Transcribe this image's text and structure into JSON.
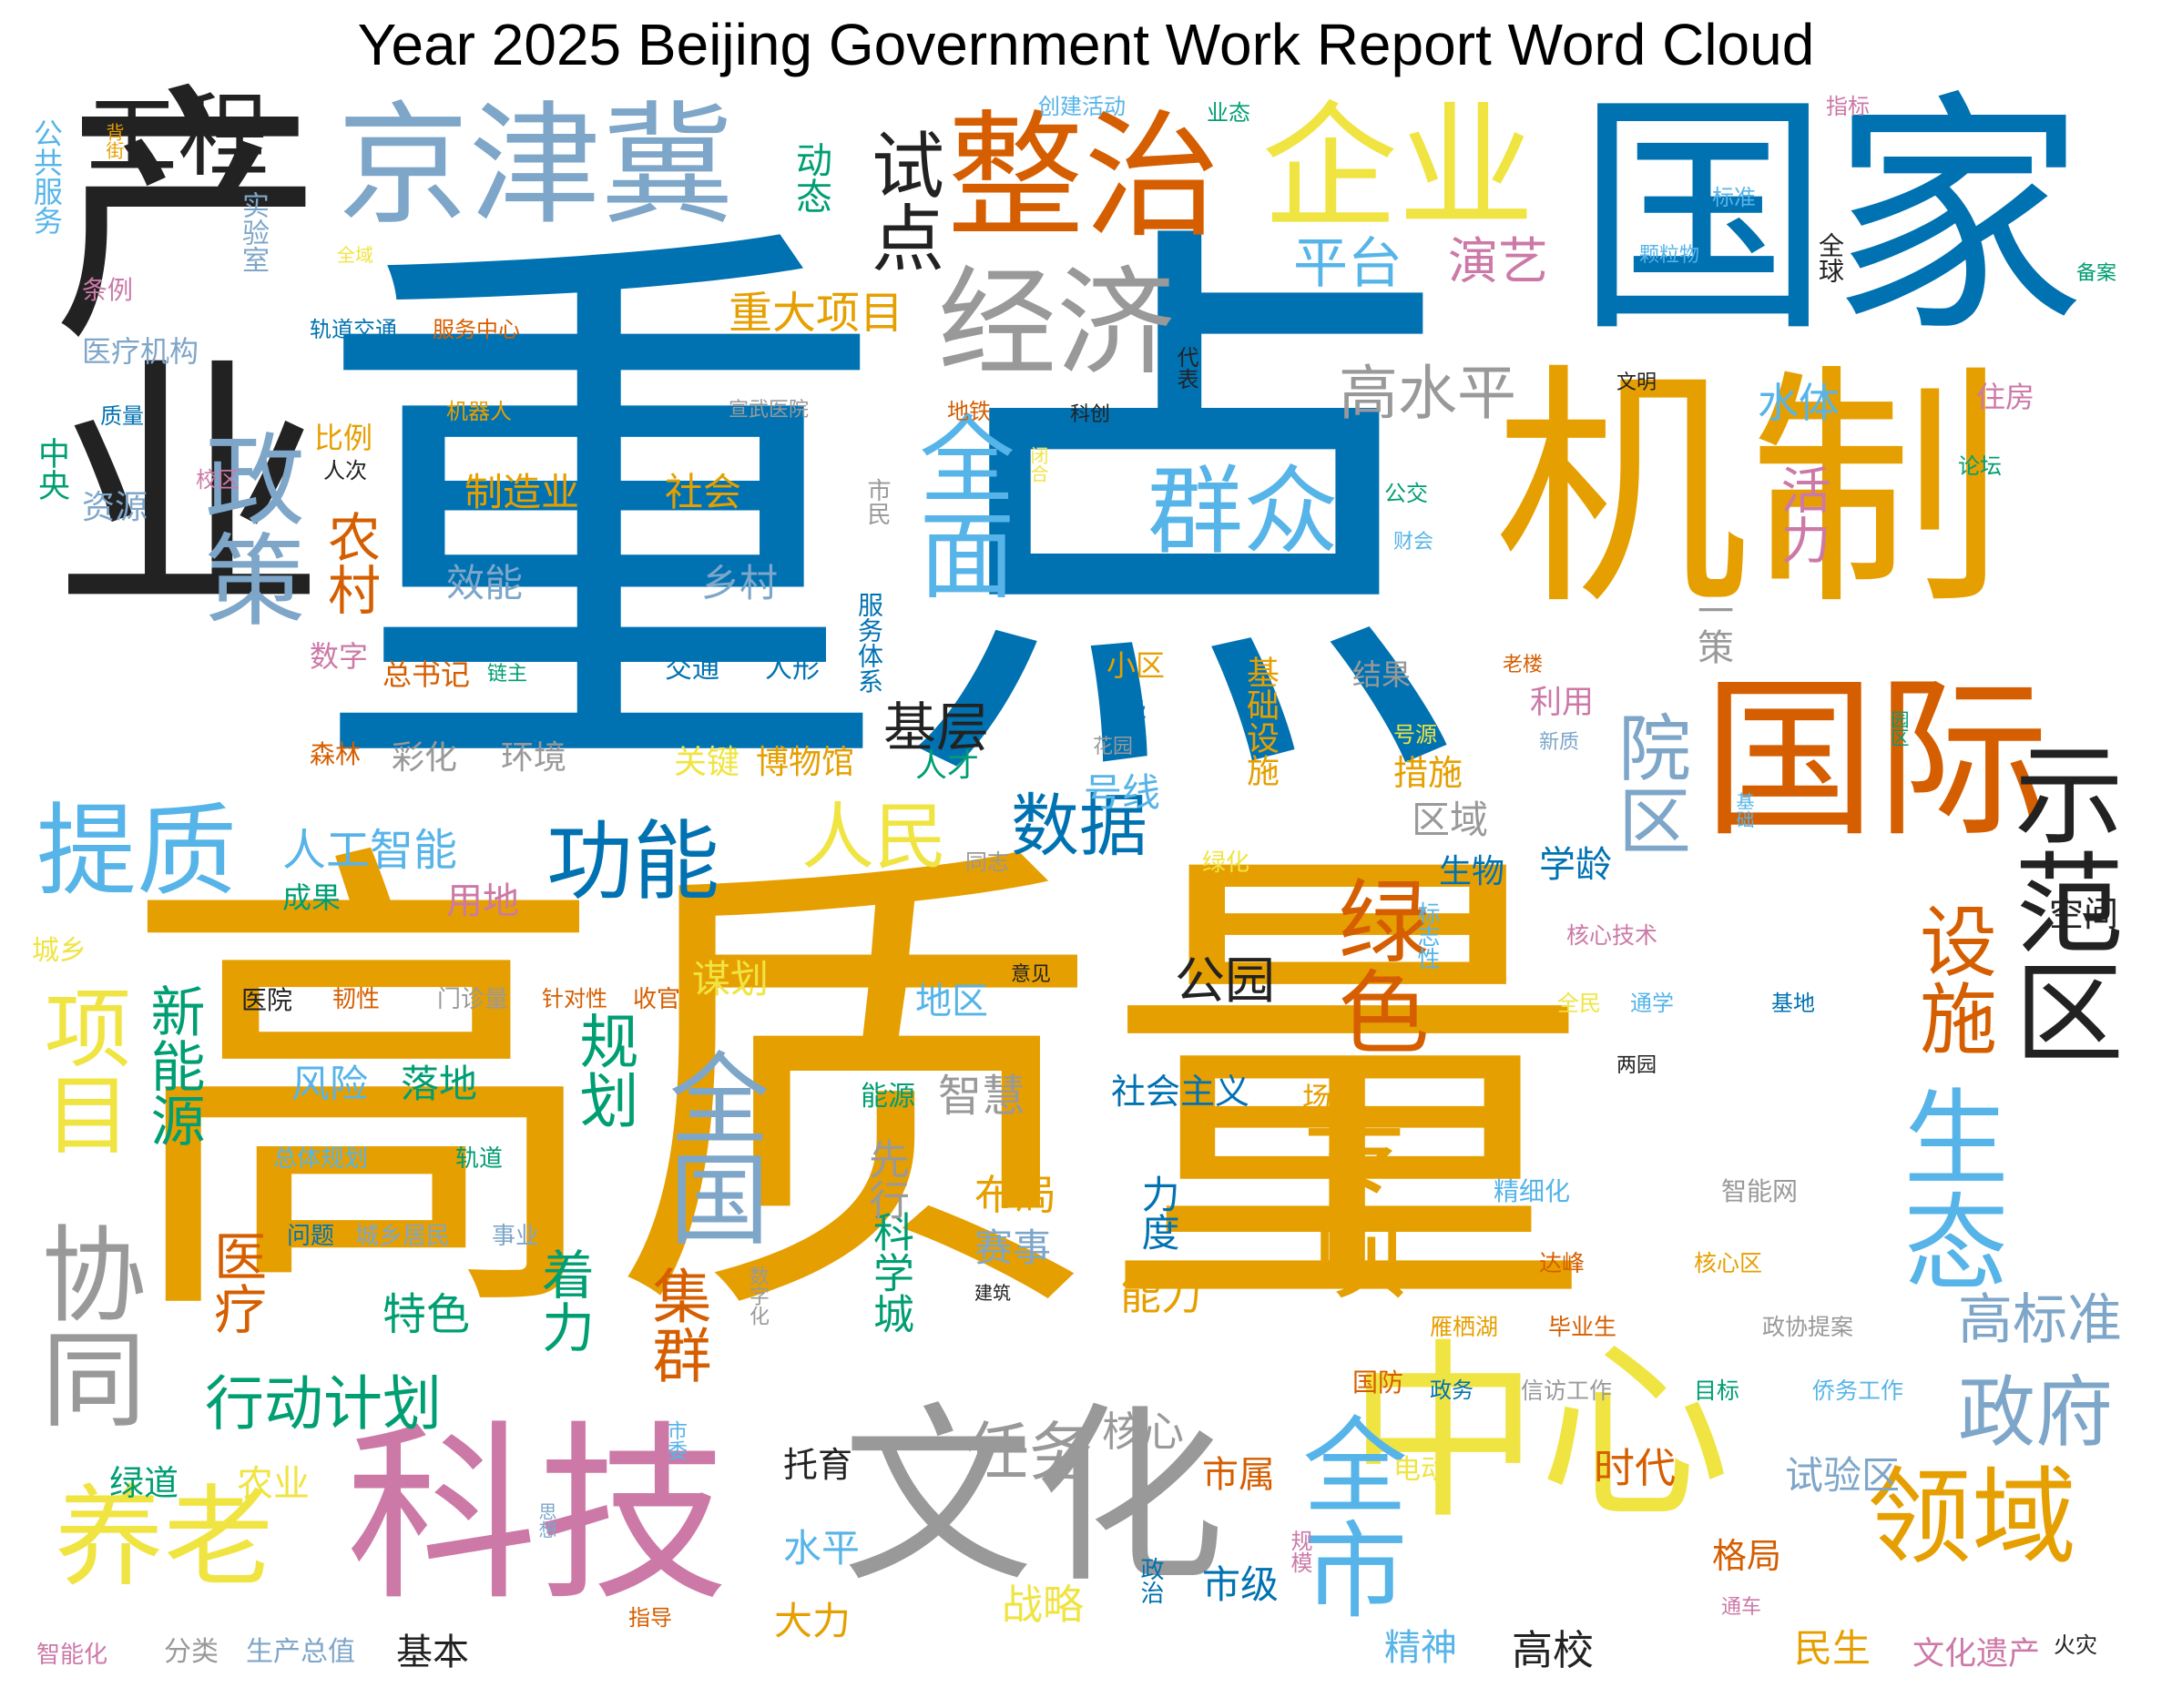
{
  "title": "Year 2025 Beijing Government Work Report Word Cloud",
  "colors": {
    "blue": "#0072b2",
    "gold": "#e69f00",
    "orange": "#d55e00",
    "sky": "#56b4e9",
    "pink": "#cc79a7",
    "green": "#009e73",
    "yellow": "#f0e442",
    "gray": "#999999",
    "steel": "#7ea6c9",
    "black": "#222222"
  },
  "words": [
    {
      "text": "重点",
      "color": "blue"
    },
    {
      "text": "高质量",
      "color": "gold"
    },
    {
      "text": "国家",
      "color": "blue"
    },
    {
      "text": "机制",
      "color": "gold"
    },
    {
      "text": "产业",
      "color": "black"
    },
    {
      "text": "京津冀",
      "color": "steel"
    },
    {
      "text": "科技",
      "color": "pink"
    },
    {
      "text": "文化",
      "color": "gray"
    },
    {
      "text": "中心",
      "color": "yellow"
    },
    {
      "text": "国际",
      "color": "orange"
    },
    {
      "text": "整治",
      "color": "orange"
    },
    {
      "text": "企业",
      "color": "yellow"
    },
    {
      "text": "经济",
      "color": "gray"
    },
    {
      "text": "工程",
      "color": "black"
    },
    {
      "text": "示范区",
      "color": "black"
    },
    {
      "text": "协同",
      "color": "gray"
    },
    {
      "text": "政策",
      "color": "steel"
    },
    {
      "text": "养老",
      "color": "yellow"
    },
    {
      "text": "领域",
      "color": "gold"
    },
    {
      "text": "提质",
      "color": "sky"
    },
    {
      "text": "群众",
      "color": "sky"
    },
    {
      "text": "全面",
      "color": "sky"
    },
    {
      "text": "全国",
      "color": "steel"
    },
    {
      "text": "专项",
      "color": "gold"
    },
    {
      "text": "全市",
      "color": "sky"
    },
    {
      "text": "生态",
      "color": "sky"
    },
    {
      "text": "功能",
      "color": "blue"
    },
    {
      "text": "绿色",
      "color": "orange"
    },
    {
      "text": "试点",
      "color": "black"
    },
    {
      "text": "项目",
      "color": "yellow"
    },
    {
      "text": "设施",
      "color": "orange"
    },
    {
      "text": "政府",
      "color": "steel"
    },
    {
      "text": "院区",
      "color": "steel"
    },
    {
      "text": "人民",
      "color": "yellow"
    },
    {
      "text": "数据",
      "color": "blue"
    },
    {
      "text": "任务",
      "color": "gray"
    },
    {
      "text": "高水平",
      "color": "gray"
    },
    {
      "text": "行动计划",
      "color": "green"
    },
    {
      "text": "平台",
      "color": "sky"
    },
    {
      "text": "演艺",
      "color": "pink"
    },
    {
      "text": "高标准",
      "color": "steel"
    },
    {
      "text": "集群",
      "color": "orange"
    },
    {
      "text": "规划",
      "color": "green"
    },
    {
      "text": "基层",
      "color": "black"
    },
    {
      "text": "新能源",
      "color": "green"
    },
    {
      "text": "农村",
      "color": "orange"
    },
    {
      "text": "重大项目",
      "color": "gold"
    },
    {
      "text": "活力",
      "color": "pink"
    },
    {
      "text": "人工智能",
      "color": "sky"
    },
    {
      "text": "着力",
      "color": "green"
    },
    {
      "text": "公园",
      "color": "black"
    },
    {
      "text": "医疗",
      "color": "orange"
    },
    {
      "text": "水体",
      "color": "sky"
    },
    {
      "text": "制造业",
      "color": "gold"
    },
    {
      "text": "社会",
      "color": "gold"
    },
    {
      "text": "效能",
      "color": "steel"
    },
    {
      "text": "乡村",
      "color": "steel"
    },
    {
      "text": "社会主义",
      "color": "blue"
    },
    {
      "text": "基础设施",
      "color": "gold"
    },
    {
      "text": "生物",
      "color": "blue"
    },
    {
      "text": "学龄",
      "color": "blue"
    },
    {
      "text": "区域",
      "color": "gray"
    },
    {
      "text": "号线",
      "color": "sky"
    },
    {
      "text": "措施",
      "color": "gold"
    },
    {
      "text": "一策",
      "color": "gray"
    },
    {
      "text": "动态",
      "color": "green"
    },
    {
      "text": "时代",
      "color": "orange"
    },
    {
      "text": "试验区",
      "color": "steel"
    },
    {
      "text": "能力",
      "color": "gold"
    },
    {
      "text": "力度",
      "color": "blue"
    },
    {
      "text": "布局",
      "color": "gold"
    },
    {
      "text": "赛事",
      "color": "steel"
    },
    {
      "text": "智慧",
      "color": "gray"
    },
    {
      "text": "特色",
      "color": "green"
    },
    {
      "text": "风险",
      "color": "sky"
    },
    {
      "text": "落地",
      "color": "green"
    },
    {
      "text": "关键",
      "color": "yellow"
    },
    {
      "text": "博物馆",
      "color": "gold"
    },
    {
      "text": "彩化",
      "color": "gray"
    },
    {
      "text": "环境",
      "color": "gray"
    },
    {
      "text": "核心",
      "color": "gray"
    },
    {
      "text": "战略",
      "color": "yellow"
    },
    {
      "text": "大力",
      "color": "gold"
    },
    {
      "text": "水平",
      "color": "sky"
    },
    {
      "text": "市级",
      "color": "blue"
    },
    {
      "text": "市属",
      "color": "orange"
    },
    {
      "text": "精神",
      "color": "sky"
    },
    {
      "text": "高校",
      "color": "black"
    },
    {
      "text": "民生",
      "color": "gold"
    },
    {
      "text": "文化遗产",
      "color": "pink"
    },
    {
      "text": "格局",
      "color": "orange"
    },
    {
      "text": "地区",
      "color": "sky"
    },
    {
      "text": "科学城",
      "color": "green"
    },
    {
      "text": "先行",
      "color": "gray"
    },
    {
      "text": "农业",
      "color": "yellow"
    },
    {
      "text": "绿道",
      "color": "green"
    },
    {
      "text": "托育",
      "color": "black"
    },
    {
      "text": "基本",
      "color": "black"
    },
    {
      "text": "用地",
      "color": "pink"
    },
    {
      "text": "成果",
      "color": "green"
    },
    {
      "text": "谋划",
      "color": "yellow"
    },
    {
      "text": "总书记",
      "color": "orange"
    },
    {
      "text": "数字",
      "color": "pink"
    },
    {
      "text": "比例",
      "color": "gold"
    },
    {
      "text": "资源",
      "color": "steel"
    },
    {
      "text": "中央",
      "color": "green"
    },
    {
      "text": "医疗机构",
      "color": "steel"
    },
    {
      "text": "条例",
      "color": "pink"
    },
    {
      "text": "公共服务",
      "color": "sky"
    },
    {
      "text": "实验室",
      "color": "steel"
    },
    {
      "text": "小区",
      "color": "gold"
    },
    {
      "text": "人才",
      "color": "green"
    },
    {
      "text": "结果",
      "color": "gray"
    },
    {
      "text": "利用",
      "color": "pink"
    },
    {
      "text": "住房",
      "color": "pink"
    },
    {
      "text": "全球",
      "color": "black"
    },
    {
      "text": "场景",
      "color": "gold"
    },
    {
      "text": "能源",
      "color": "green"
    },
    {
      "text": "交通",
      "color": "blue"
    },
    {
      "text": "人形",
      "color": "blue"
    },
    {
      "text": "服务体系",
      "color": "blue"
    },
    {
      "text": "森林",
      "color": "orange"
    },
    {
      "text": "城乡",
      "color": "yellow"
    },
    {
      "text": "精细化",
      "color": "sky"
    },
    {
      "text": "智能网",
      "color": "gray"
    },
    {
      "text": "达峰",
      "color": "orange"
    },
    {
      "text": "核心区",
      "color": "gold"
    },
    {
      "text": "雁栖湖",
      "color": "gold"
    },
    {
      "text": "毕业生",
      "color": "orange"
    },
    {
      "text": "政协提案",
      "color": "gray"
    },
    {
      "text": "国防",
      "color": "orange"
    },
    {
      "text": "政务",
      "color": "blue"
    },
    {
      "text": "信访工作",
      "color": "gray"
    },
    {
      "text": "目标",
      "color": "green"
    },
    {
      "text": "侨务工作",
      "color": "sky"
    },
    {
      "text": "电动",
      "color": "yellow"
    },
    {
      "text": "全民",
      "color": "yellow"
    },
    {
      "text": "通学",
      "color": "sky"
    },
    {
      "text": "基地",
      "color": "blue"
    },
    {
      "text": "核心技术",
      "color": "pink"
    },
    {
      "text": "空间",
      "color": "black"
    },
    {
      "text": "两园",
      "color": "black"
    },
    {
      "text": "标志性",
      "color": "sky"
    },
    {
      "text": "轨道交通",
      "color": "blue"
    },
    {
      "text": "服务中心",
      "color": "orange"
    },
    {
      "text": "机器人",
      "color": "gold"
    },
    {
      "text": "宣武医院",
      "color": "gray"
    },
    {
      "text": "地铁",
      "color": "orange"
    },
    {
      "text": "科创",
      "color": "black"
    },
    {
      "text": "代表",
      "color": "black"
    },
    {
      "text": "创建活动",
      "color": "sky"
    },
    {
      "text": "业态",
      "color": "green"
    },
    {
      "text": "指标",
      "color": "pink"
    },
    {
      "text": "标准",
      "color": "sky"
    },
    {
      "text": "颗粒物",
      "color": "sky"
    },
    {
      "text": "备案",
      "color": "green"
    },
    {
      "text": "文明",
      "color": "black"
    },
    {
      "text": "论坛",
      "color": "green"
    },
    {
      "text": "公交",
      "color": "green"
    },
    {
      "text": "财会",
      "color": "sky"
    },
    {
      "text": "市民",
      "color": "gray"
    },
    {
      "text": "闭合",
      "color": "yellow"
    },
    {
      "text": "校区",
      "color": "pink"
    },
    {
      "text": "人次",
      "color": "black"
    },
    {
      "text": "质量",
      "color": "blue"
    },
    {
      "text": "背街",
      "color": "gold"
    },
    {
      "text": "全域",
      "color": "yellow"
    },
    {
      "text": "链主",
      "color": "green"
    },
    {
      "text": "垃圾",
      "color": "blue"
    },
    {
      "text": "花园",
      "color": "gray"
    },
    {
      "text": "号源",
      "color": "yellow"
    },
    {
      "text": "新质",
      "color": "steel"
    },
    {
      "text": "老楼",
      "color": "orange"
    },
    {
      "text": "园区",
      "color": "green"
    },
    {
      "text": "基础",
      "color": "sky"
    },
    {
      "text": "同志",
      "color": "gray"
    },
    {
      "text": "绿化",
      "color": "yellow"
    },
    {
      "text": "意见",
      "color": "black"
    },
    {
      "text": "收官",
      "color": "orange"
    },
    {
      "text": "针对性",
      "color": "orange"
    },
    {
      "text": "门诊量",
      "color": "gray"
    },
    {
      "text": "韧性",
      "color": "orange"
    },
    {
      "text": "医院",
      "color": "black"
    },
    {
      "text": "总体规划",
      "color": "sky"
    },
    {
      "text": "轨道",
      "color": "green"
    },
    {
      "text": "问题",
      "color": "blue"
    },
    {
      "text": "城乡居民",
      "color": "steel"
    },
    {
      "text": "事业",
      "color": "steel"
    },
    {
      "text": "建筑",
      "color": "black"
    },
    {
      "text": "数字化",
      "color": "gray"
    },
    {
      "text": "市委",
      "color": "sky"
    },
    {
      "text": "规模",
      "color": "pink"
    },
    {
      "text": "思想",
      "color": "steel"
    },
    {
      "text": "指导",
      "color": "orange"
    },
    {
      "text": "政治",
      "color": "blue"
    },
    {
      "text": "通车",
      "color": "pink"
    },
    {
      "text": "火灾",
      "color": "black"
    },
    {
      "text": "智能化",
      "color": "pink"
    },
    {
      "text": "分类",
      "color": "gray"
    },
    {
      "text": "生产总值",
      "color": "steel"
    }
  ]
}
